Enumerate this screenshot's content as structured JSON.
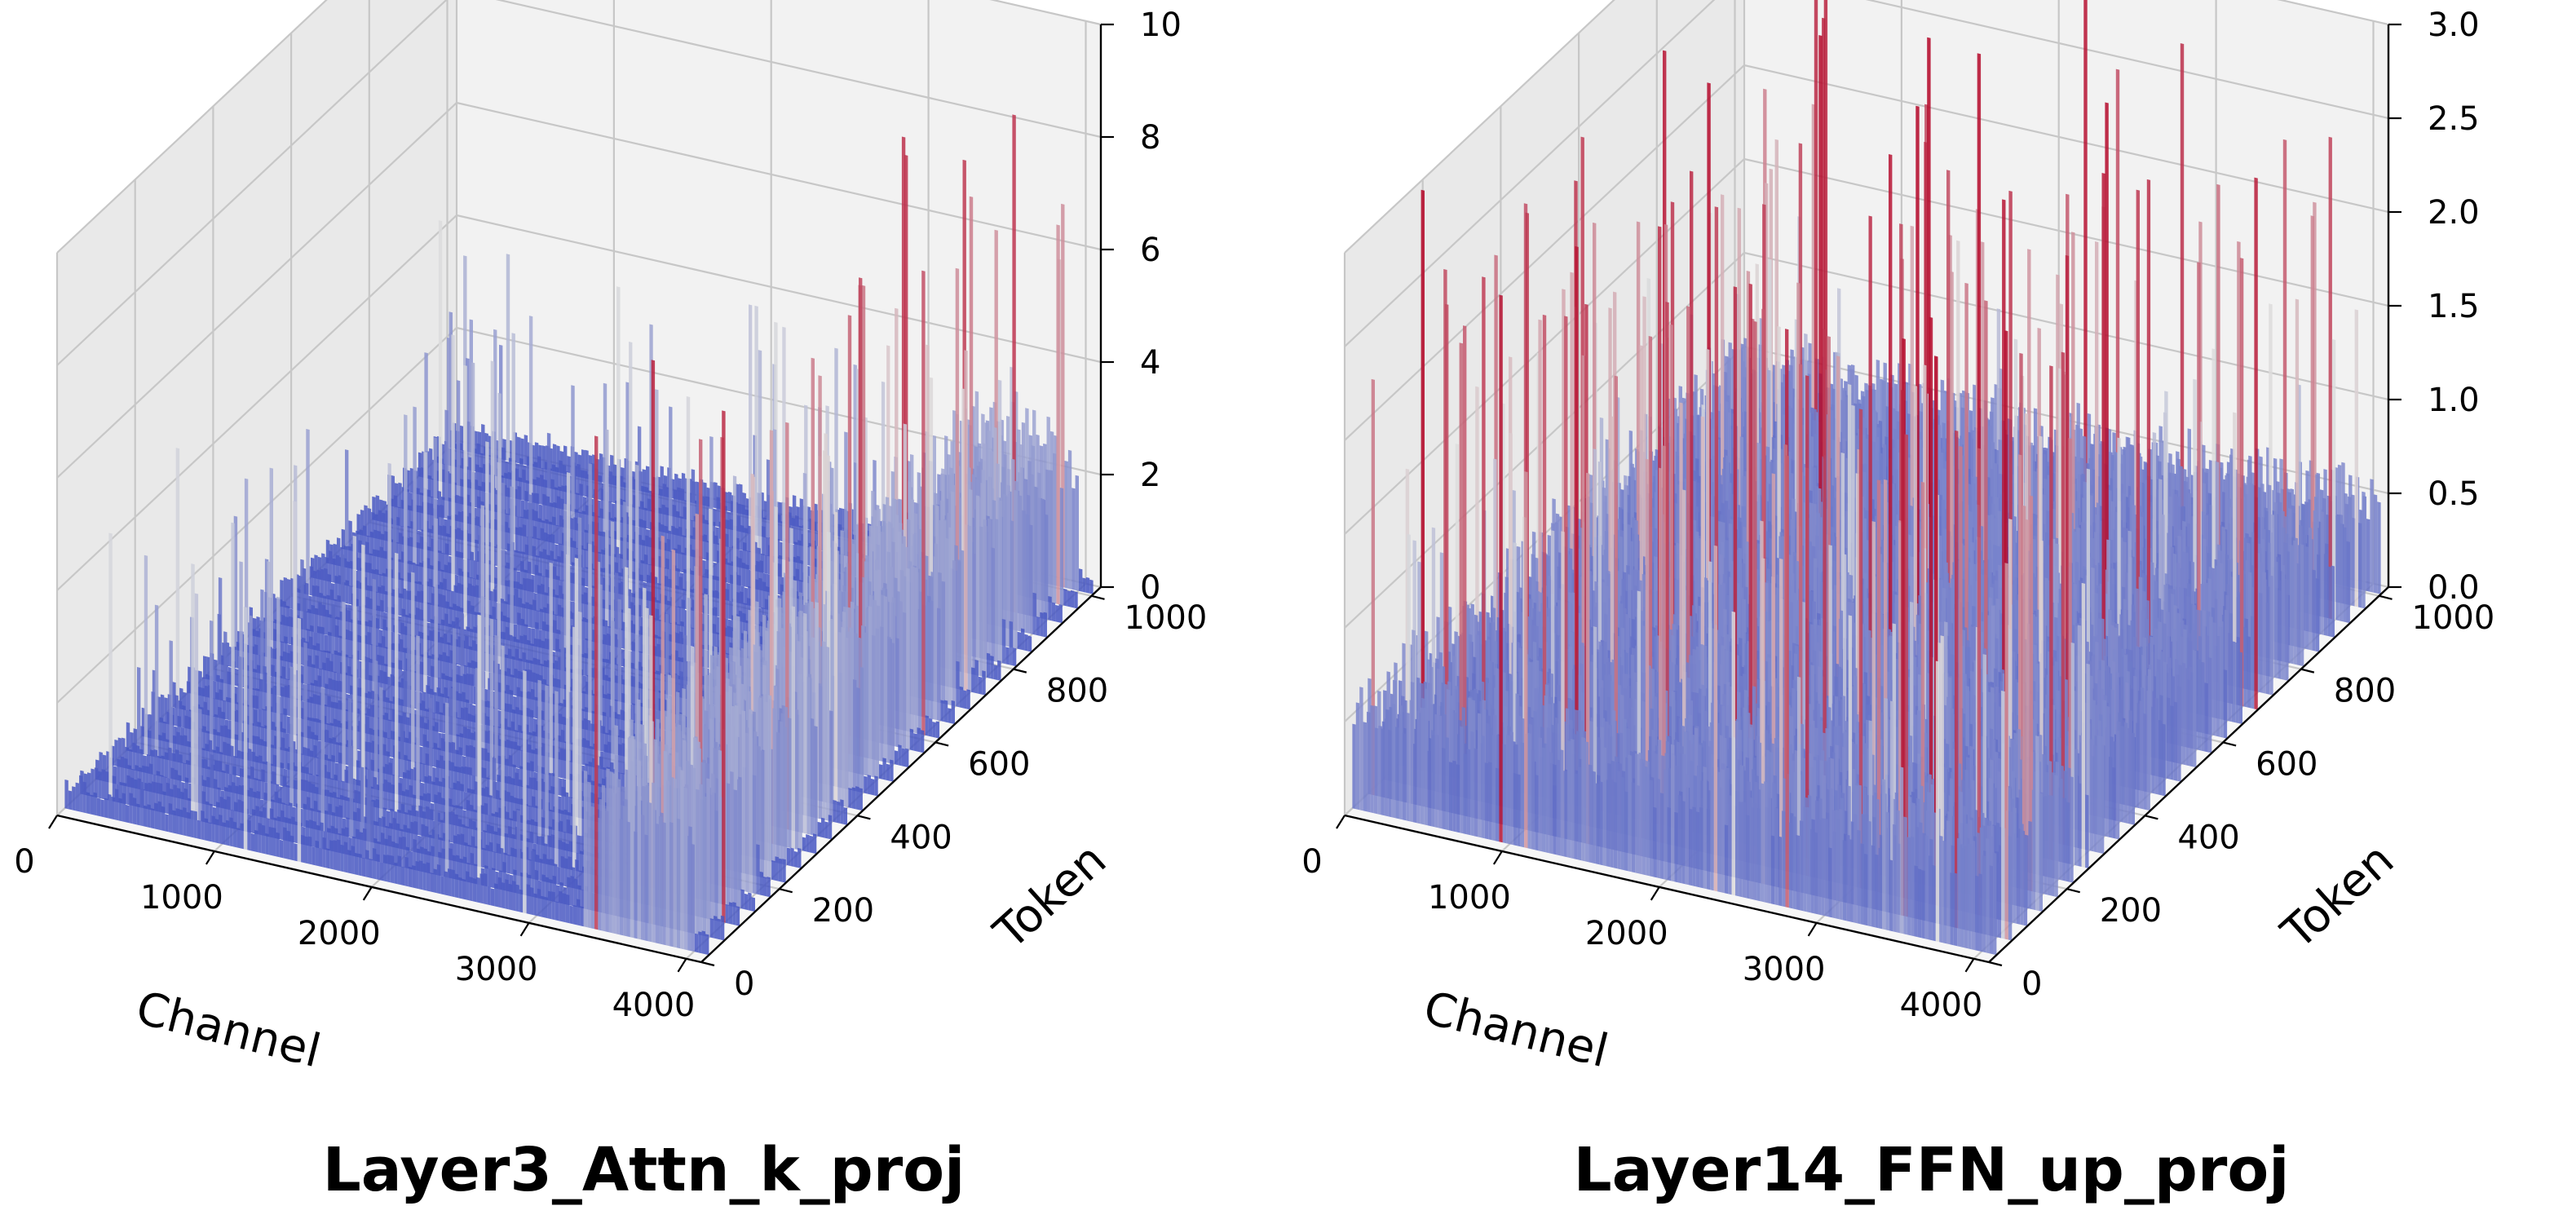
{
  "colors": {
    "low": "#3b4cc0",
    "mid": "#dddddd",
    "high": "#b40426"
  },
  "chart_data": [
    {
      "type": "surface3d",
      "title": "Layer3_Attn_k_proj",
      "xlabel": "Channel",
      "ylabel": "Token",
      "zlabel": "",
      "xlim": [
        0,
        4096
      ],
      "ylim": [
        0,
        1024
      ],
      "zlim": [
        0,
        10
      ],
      "x_ticks": [
        "0",
        "1000",
        "2000",
        "3000",
        "4000"
      ],
      "y_ticks": [
        "0",
        "200",
        "400",
        "600",
        "800",
        "1000"
      ],
      "z_ticks": [
        "0",
        "2",
        "4",
        "6",
        "8",
        "10"
      ],
      "colormap": "coolwarm",
      "baseline": 0.3,
      "regions": [
        {
          "channel_start": 0,
          "channel_end": 3300,
          "level": 0.5,
          "spike_max": 5
        },
        {
          "channel_start": 3300,
          "channel_end": 4000,
          "level": 3,
          "spike_max": 9.5
        },
        {
          "channel_start": 4000,
          "channel_end": 4096,
          "level": 0.4,
          "spike_max": 1
        }
      ]
    },
    {
      "type": "surface3d",
      "title": "Layer14_FFN_up_proj",
      "xlabel": "Channel",
      "ylabel": "Token",
      "zlabel": "",
      "xlim": [
        0,
        4096
      ],
      "ylim": [
        0,
        1024
      ],
      "zlim": [
        0,
        3
      ],
      "x_ticks": [
        "0",
        "1000",
        "2000",
        "3000",
        "4000"
      ],
      "y_ticks": [
        "0",
        "200",
        "400",
        "600",
        "800",
        "1000"
      ],
      "z_ticks": [
        "0.0",
        "0.5",
        "1.0",
        "1.5",
        "2.0",
        "2.5",
        "3.0"
      ],
      "colormap": "coolwarm",
      "baseline": 0.6,
      "regions": [
        {
          "channel_start": 0,
          "channel_end": 4096,
          "level": 0.6,
          "spike_max": 3.0
        }
      ]
    }
  ]
}
